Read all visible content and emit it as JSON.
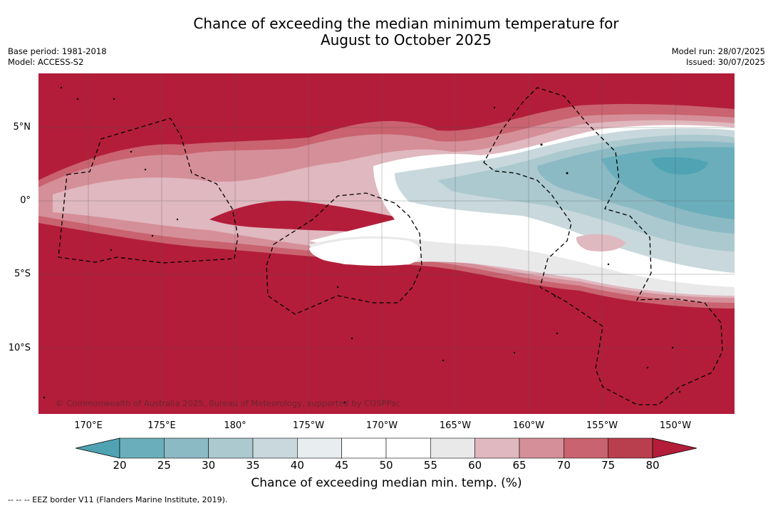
{
  "title_line1": "Chance of exceeding the median minimum temperature for",
  "title_line2": "August to October 2025",
  "base_period": "Base period: 1981-2018",
  "model": "Model: ACCESS-S2",
  "model_run": "Model run: 28/07/2025",
  "issued": "Issued: 30/07/2025",
  "copyright": "© Commonwealth of Australia 2025, Bureau of Meteorology, supported by COSPPac",
  "lat_labels": [
    "5°N",
    "0°",
    "5°S",
    "10°S"
  ],
  "lon_labels": [
    "170°E",
    "175°E",
    "180°",
    "175°W",
    "170°W",
    "165°W",
    "160°W",
    "155°W",
    "150°W"
  ],
  "colorbar": {
    "ticks": [
      "20",
      "25",
      "30",
      "35",
      "40",
      "45",
      "50",
      "55",
      "60",
      "65",
      "70",
      "75",
      "80"
    ],
    "colors": [
      "#4fa3b3",
      "#6aaebb",
      "#8cbac4",
      "#abc9cf",
      "#c8d8dc",
      "#e8eef0",
      "#ffffff",
      "#ffffff",
      "#e9e9ea",
      "#e0b8bf",
      "#d58f99",
      "#c9636f",
      "#b93e4e",
      "#b31d3a"
    ],
    "label": "Chance of exceeding median min. temp. (%)"
  },
  "legend_footnote": "--  --  -- EEZ border V11 (Flanders Marine Institute, 2019).",
  "colors": {
    "red_high": "#b31d3a",
    "white_mid": "#ffffff",
    "blue_low": "#4fa3b3"
  }
}
